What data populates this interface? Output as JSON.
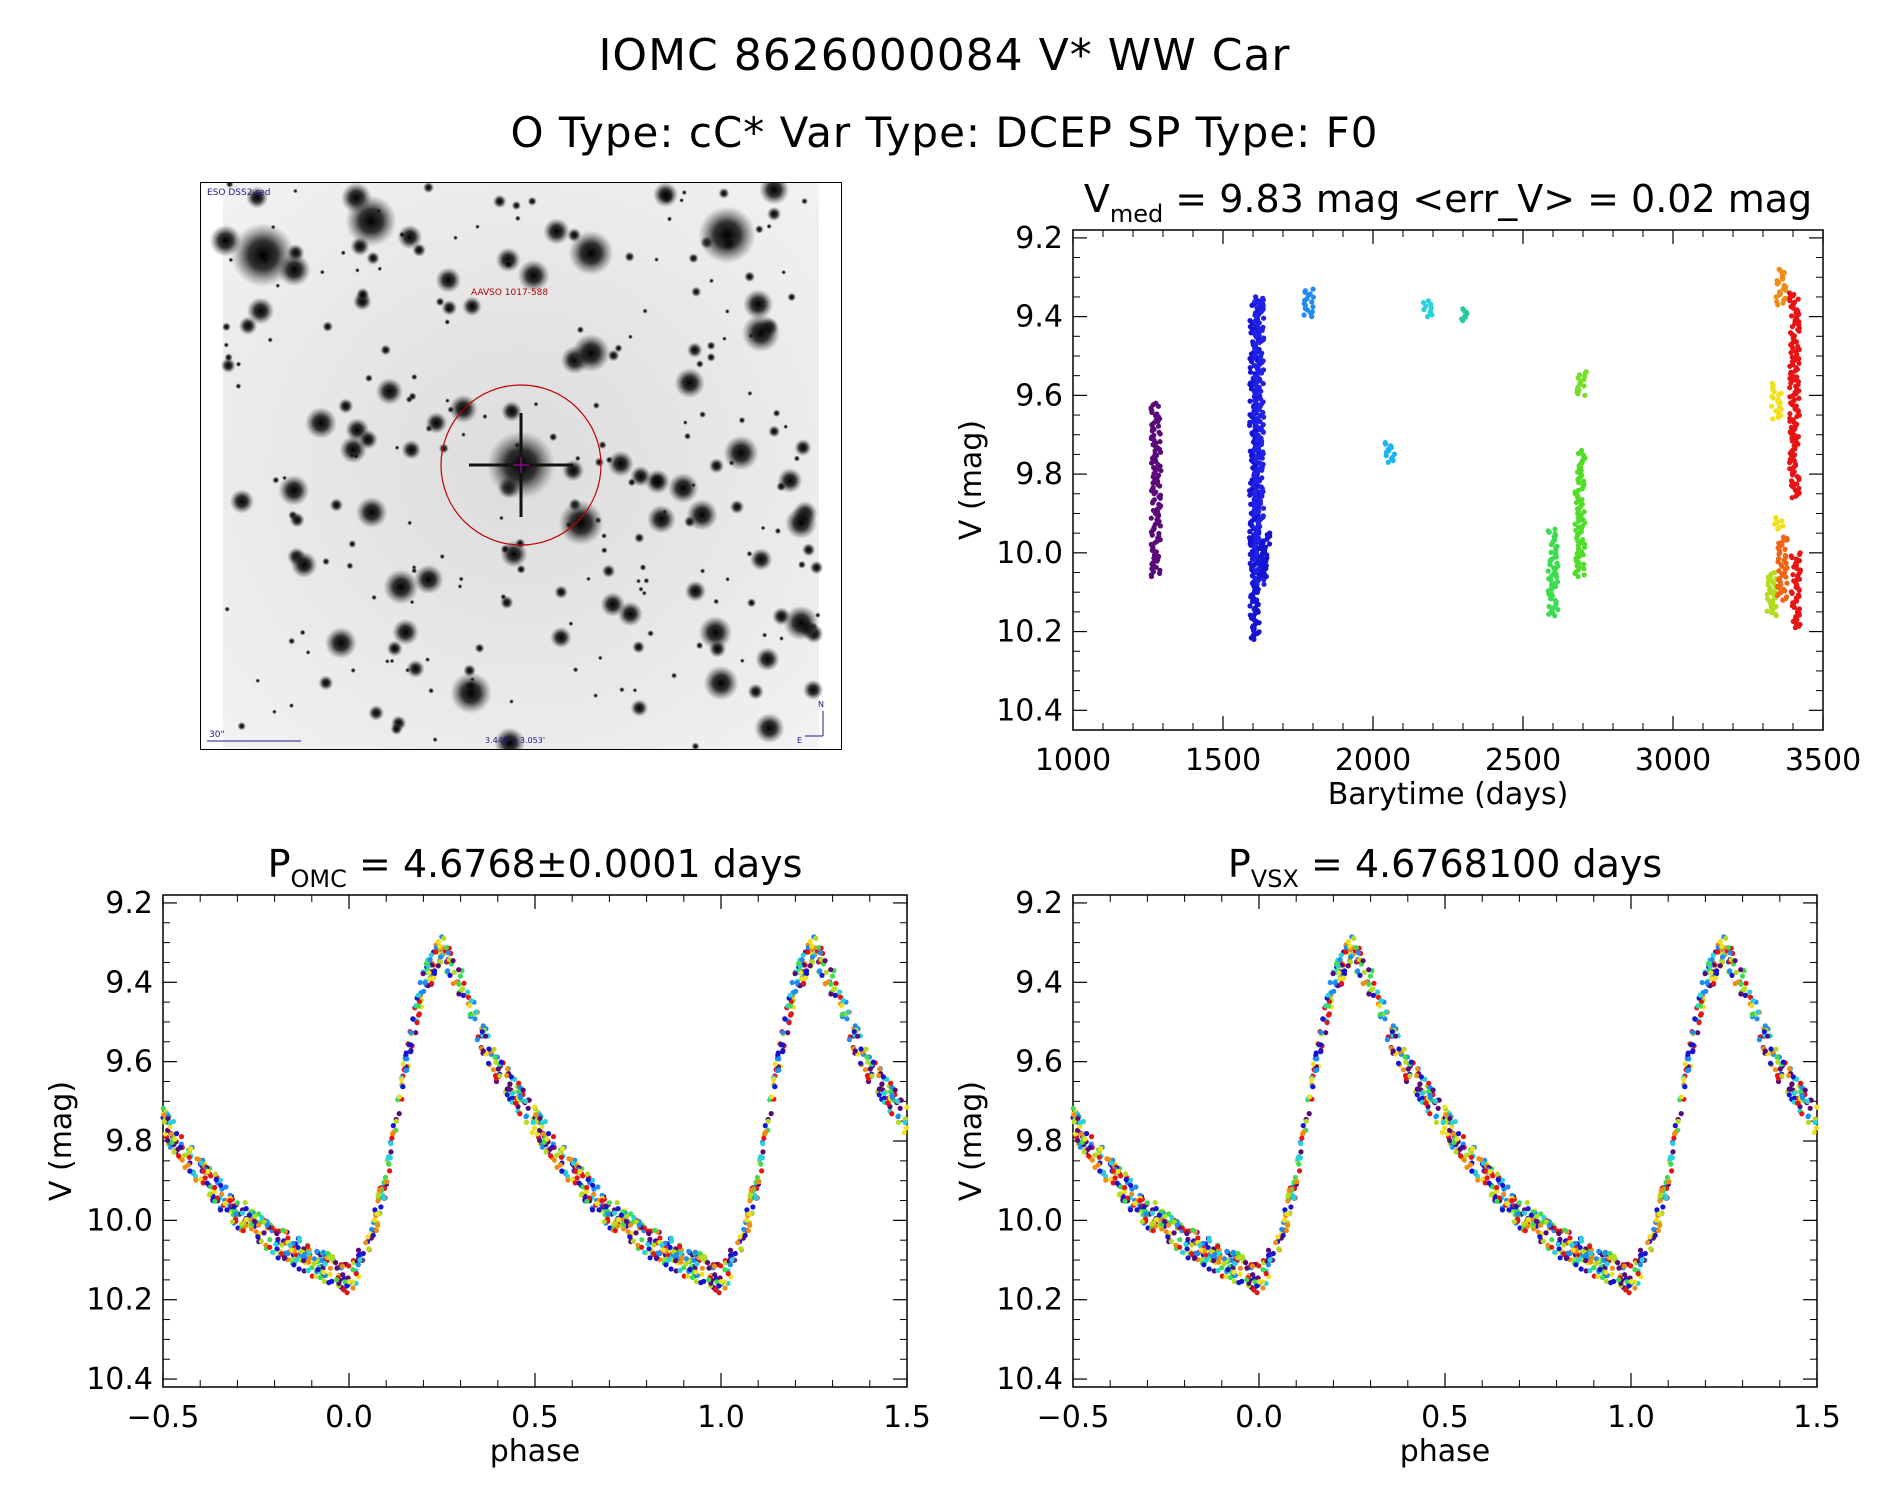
{
  "header": {
    "title_line1": "IOMC 8626000084   V* WW Car",
    "title_line2": "O Type: cC*  Var Type: DCEP  SP Type: F0"
  },
  "finder_chart": {
    "survey_label": "ESO DSS2-red",
    "target_label": "AAVSO 1017-588",
    "scale_label": "30\"",
    "fov_label": "3.449' x 3.053'",
    "north_label": "N",
    "east_label": "E",
    "marker_color": "#c00000"
  },
  "chart_data": [
    {
      "type": "scatter",
      "panel": "lightcurve",
      "title_main": "V",
      "title_sub": "med",
      "title_rest": " = 9.83 mag <err_V> = 0.02 mag",
      "xlabel": "Barytime (days)",
      "ylabel": "V (mag)",
      "xlim": [
        1000,
        3500
      ],
      "ylim": [
        10.45,
        9.18
      ],
      "y_inverted": true,
      "xticks": [
        1000,
        1500,
        2000,
        2500,
        3000,
        3500
      ],
      "yticks": [
        9.2,
        9.4,
        9.6,
        9.8,
        10.0,
        10.2,
        10.4
      ],
      "groups": [
        {
          "x": 1277,
          "ymin": 9.62,
          "ymax": 10.06,
          "color": "#5a0a78"
        },
        {
          "x": 1605,
          "ymin": 9.36,
          "ymax": 10.22,
          "color": "#1414d2"
        },
        {
          "x": 1620,
          "ymin": 9.35,
          "ymax": 10.08,
          "color": "#2020e6"
        },
        {
          "x": 1640,
          "ymin": 9.95,
          "ymax": 10.06,
          "color": "#1414d2"
        },
        {
          "x": 1785,
          "ymin": 9.33,
          "ymax": 9.4,
          "color": "#1e8cf0"
        },
        {
          "x": 2055,
          "ymin": 9.72,
          "ymax": 9.77,
          "color": "#1eb4f0"
        },
        {
          "x": 2185,
          "ymin": 9.36,
          "ymax": 9.4,
          "color": "#28d2dc"
        },
        {
          "x": 2300,
          "ymin": 9.38,
          "ymax": 9.41,
          "color": "#28c8a0"
        },
        {
          "x": 2600,
          "ymin": 9.94,
          "ymax": 10.16,
          "color": "#3cdc50"
        },
        {
          "x": 2690,
          "ymin": 9.74,
          "ymax": 10.06,
          "color": "#50dc28"
        },
        {
          "x": 2695,
          "ymin": 9.54,
          "ymax": 9.6,
          "color": "#78dc28"
        },
        {
          "x": 3330,
          "ymin": 10.05,
          "ymax": 10.16,
          "color": "#b4dc1e"
        },
        {
          "x": 3345,
          "ymin": 9.57,
          "ymax": 9.66,
          "color": "#f0e01e"
        },
        {
          "x": 3350,
          "ymin": 9.91,
          "ymax": 9.94,
          "color": "#f0e01e"
        },
        {
          "x": 3360,
          "ymin": 9.28,
          "ymax": 9.37,
          "color": "#f08c14"
        },
        {
          "x": 3365,
          "ymin": 9.96,
          "ymax": 10.12,
          "color": "#f06414"
        },
        {
          "x": 3405,
          "ymin": 9.34,
          "ymax": 9.86,
          "color": "#e61414"
        },
        {
          "x": 3410,
          "ymin": 10.0,
          "ymax": 10.19,
          "color": "#e61414"
        }
      ]
    },
    {
      "type": "scatter",
      "panel": "phase_omc",
      "title_main": "P",
      "title_sub": "OMC",
      "title_rest": " = 4.6768±0.0001 days",
      "xlabel": "phase",
      "ylabel": "V (mag)",
      "xlim": [
        -0.5,
        1.5
      ],
      "ylim": [
        10.42,
        9.18
      ],
      "y_inverted": true,
      "xticks": [
        -0.5,
        0.0,
        0.5,
        1.0,
        1.5
      ],
      "xtick_labels": [
        "−0.5",
        "0.0",
        "0.5",
        "1.0",
        "1.5"
      ],
      "yticks": [
        9.2,
        9.4,
        9.6,
        9.8,
        10.0,
        10.2,
        10.4
      ],
      "curve": {
        "phase": [
          -0.5,
          -0.4,
          -0.3,
          -0.2,
          -0.1,
          0.0,
          0.05,
          0.1,
          0.15,
          0.2,
          0.25,
          0.3,
          0.35,
          0.4
        ],
        "mag": [
          9.75,
          9.88,
          9.98,
          10.05,
          10.1,
          10.15,
          10.07,
          9.9,
          9.62,
          9.4,
          9.32,
          9.4,
          9.52,
          9.62
        ],
        "period_repeat": 1.0
      }
    },
    {
      "type": "scatter",
      "panel": "phase_vsx",
      "title_main": "P",
      "title_sub": "VSX",
      "title_rest": " = 4.6768100 days",
      "xlabel": "phase",
      "ylabel": "V (mag)",
      "xlim": [
        -0.5,
        1.5
      ],
      "ylim": [
        10.42,
        9.18
      ],
      "y_inverted": true,
      "xticks": [
        -0.5,
        0.0,
        0.5,
        1.0,
        1.5
      ],
      "xtick_labels": [
        "−0.5",
        "0.0",
        "0.5",
        "1.0",
        "1.5"
      ],
      "yticks": [
        9.2,
        9.4,
        9.6,
        9.8,
        10.0,
        10.2,
        10.4
      ],
      "curve": {
        "phase": [
          -0.5,
          -0.4,
          -0.3,
          -0.2,
          -0.1,
          0.0,
          0.05,
          0.1,
          0.15,
          0.2,
          0.25,
          0.3,
          0.35,
          0.4
        ],
        "mag": [
          9.75,
          9.88,
          9.98,
          10.05,
          10.1,
          10.15,
          10.07,
          9.9,
          9.62,
          9.4,
          9.32,
          9.4,
          9.52,
          9.62
        ],
        "period_repeat": 1.0
      }
    }
  ],
  "season_colors": [
    "#5a0a78",
    "#1414d2",
    "#1e8cf0",
    "#28d2dc",
    "#3cdc50",
    "#b4dc1e",
    "#f0e01e",
    "#f08c14",
    "#e61414"
  ]
}
